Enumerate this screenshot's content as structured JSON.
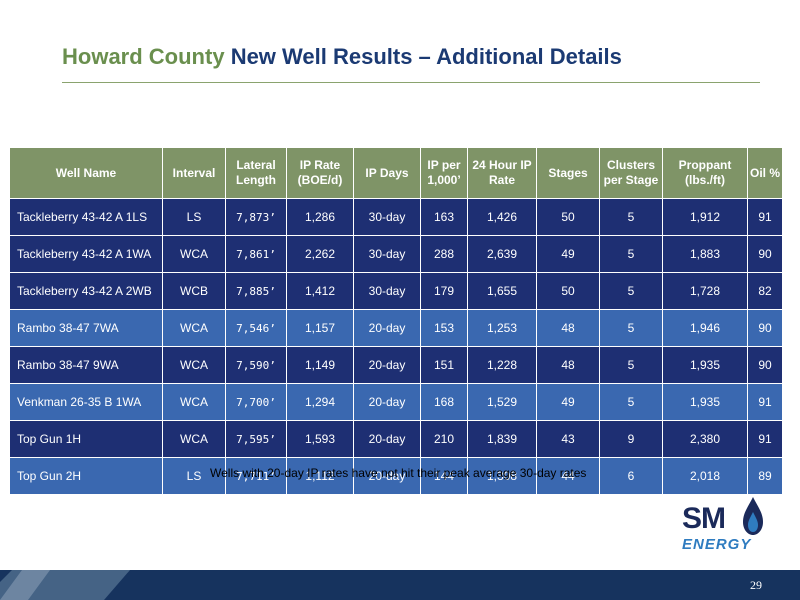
{
  "title": {
    "part1": "Howard County",
    "part2": "New Well Results – Additional Details"
  },
  "table": {
    "headers": [
      "Well Name",
      "Interval",
      "Lateral Length",
      "IP Rate (BOE/d)",
      "IP Days",
      "IP per 1,000’",
      "24 Hour IP Rate",
      "Stages",
      "Clusters per Stage",
      "Proppant (lbs./ft)",
      "Oil %"
    ],
    "rows": [
      [
        "Tackleberry 43-42 A 1LS",
        "LS",
        "7,873’",
        "1,286",
        "30-day",
        "163",
        "1,426",
        "50",
        "5",
        "1,912",
        "91"
      ],
      [
        "Tackleberry 43-42 A 1WA",
        "WCA",
        "7,861’",
        "2,262",
        "30-day",
        "288",
        "2,639",
        "49",
        "5",
        "1,883",
        "90"
      ],
      [
        "Tackleberry 43-42 A 2WB",
        "WCB",
        "7,885’",
        "1,412",
        "30-day",
        "179",
        "1,655",
        "50",
        "5",
        "1,728",
        "82"
      ],
      [
        "Rambo 38-47 7WA",
        "WCA",
        "7,546’",
        "1,157",
        "20-day",
        "153",
        "1,253",
        "48",
        "5",
        "1,946",
        "90"
      ],
      [
        "Rambo 38-47 9WA",
        "WCA",
        "7,590’",
        "1,149",
        "20-day",
        "151",
        "1,228",
        "48",
        "5",
        "1,935",
        "90"
      ],
      [
        "Venkman 26-35 B 1WA",
        "WCA",
        "7,700’",
        "1,294",
        "20-day",
        "168",
        "1,529",
        "49",
        "5",
        "1,935",
        "91"
      ],
      [
        "Top Gun 1H",
        "WCA",
        "7,595’",
        "1,593",
        "20-day",
        "210",
        "1,839",
        "43",
        "9",
        "2,380",
        "91"
      ],
      [
        "Top Gun 2H",
        "LS",
        "7,711’",
        "1,112",
        "20-day",
        "144",
        "1,308",
        "44",
        "6",
        "2,018",
        "89"
      ]
    ]
  },
  "footnote": "Wells with 20-day IP rates have not hit their peak average 30-day rates",
  "logo": {
    "sm": "SM",
    "energy": "ENERGY"
  },
  "page_number": "29",
  "colors": {
    "title_green": "#6a8f4e",
    "title_navy": "#1b3a73",
    "header_bg": "#7f9467",
    "row_dark": "#1e2f73",
    "row_light": "#3a68b0",
    "footer": "#16335e"
  }
}
